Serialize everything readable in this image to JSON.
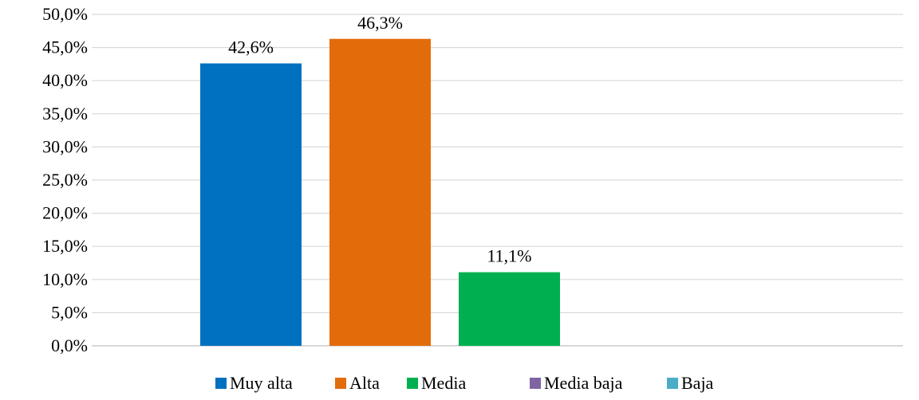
{
  "chart_data": {
    "type": "bar",
    "title": "",
    "xlabel": "",
    "ylabel": "",
    "ylim": [
      0,
      50
    ],
    "yticks": [
      "0,0%",
      "5,0%",
      "10,0%",
      "15,0%",
      "20,0%",
      "25,0%",
      "30,0%",
      "35,0%",
      "40,0%",
      "45,0%",
      "50,0%"
    ],
    "ytick_values": [
      0,
      5,
      10,
      15,
      20,
      25,
      30,
      35,
      40,
      45,
      50
    ],
    "grid": "horizontal",
    "legend_position": "bottom",
    "series": [
      {
        "name": "Muy alta",
        "value": 42.6,
        "label": "42,6%",
        "color": "#0070C0"
      },
      {
        "name": "Alta",
        "value": 46.3,
        "label": "46,3%",
        "color": "#E36C0A"
      },
      {
        "name": "Media",
        "value": 11.1,
        "label": "11,1%",
        "color": "#00B050"
      },
      {
        "name": "Media baja",
        "value": 0,
        "label": "",
        "color": "#8064A2"
      },
      {
        "name": "Baja",
        "value": 0,
        "label": "",
        "color": "#4BACC6"
      }
    ]
  }
}
